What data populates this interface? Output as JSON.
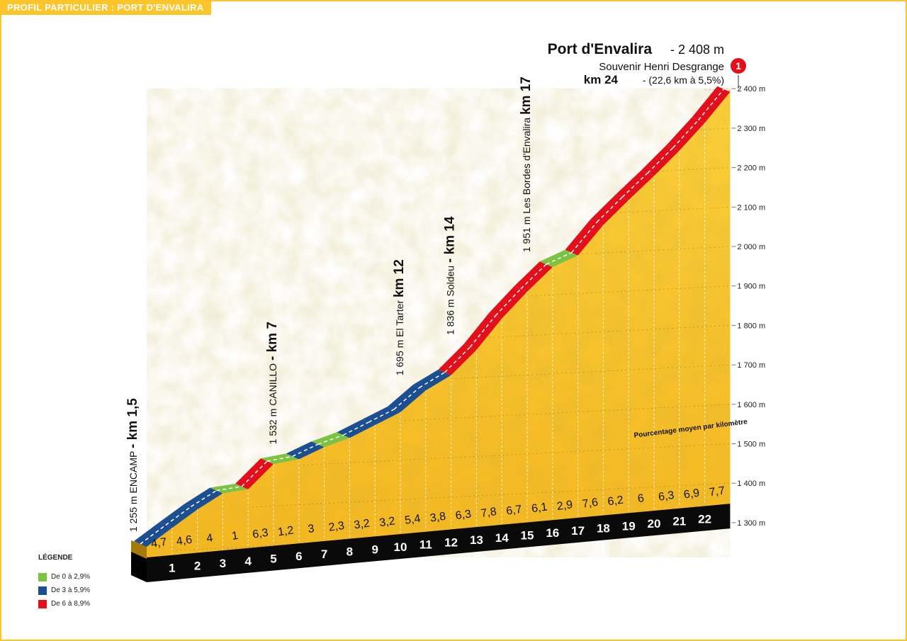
{
  "header": {
    "label": "PROFIL PARTICULIER : PORT D'ENVALIRA"
  },
  "summit": {
    "name": "Port d'Envalira",
    "altitude": " - 2 408 m",
    "dedication": "Souvenir Henri Desgrange",
    "km": "km 24",
    "detail": " - (22,6 km à 5,5%)",
    "badge": "1"
  },
  "annotations": [
    {
      "alt": "1 255 m",
      "place": "ENCAMP",
      "km": "- km 1,5",
      "at_km": 0
    },
    {
      "alt": "1 532 m",
      "place": "CANILLO",
      "km": "- km 7",
      "at_km": 5.5
    },
    {
      "alt": "1 695 m",
      "place": "El Tarter",
      "km": "km 12",
      "at_km": 10.5
    },
    {
      "alt": "1 836 m",
      "place": "Soldeu",
      "km": "- km 14",
      "at_km": 12.5
    },
    {
      "alt": "1 951 m",
      "place": "Les Bordes d'Envalira",
      "km": "km 17",
      "at_km": 15.5
    }
  ],
  "avg_note": "Pourcentage moyen par kilomètre",
  "legend": {
    "title": "LÉGENDE",
    "items": [
      {
        "label": "De 0 à 2,9%",
        "color": "#7dc242"
      },
      {
        "label": "De 3 à 5,9%",
        "color": "#1b4f91"
      },
      {
        "label": "De 6 à 8,9%",
        "color": "#e3101c"
      }
    ]
  },
  "chart_data": {
    "type": "area",
    "title": "Port d'Envalira",
    "x_unit": "km",
    "ylabel": "",
    "y_ticks": [
      "2 400 m",
      "2 300 m",
      "2 200 m",
      "2 100 m",
      "2 000 m",
      "1 900 m",
      "1 800 m",
      "1 700 m",
      "1 600 m",
      "1 500 m",
      "1 400 m",
      "1 300 m"
    ],
    "y_tick_values": [
      2400,
      2300,
      2200,
      2100,
      2000,
      1900,
      1800,
      1700,
      1600,
      1500,
      1400,
      1300
    ],
    "km_labels": [
      "1",
      "2",
      "3",
      "4",
      "5",
      "6",
      "7",
      "8",
      "9",
      "10",
      "11",
      "12",
      "13",
      "14",
      "15",
      "16",
      "17",
      "18",
      "19",
      "20",
      "21",
      "22"
    ],
    "gradients": [
      "4,7",
      "4,6",
      "4",
      "1",
      "6,3",
      "1,2",
      "3",
      "2,3",
      "3,2",
      "3,2",
      "5,4",
      "3,8",
      "6,3",
      "7,8",
      "6,7",
      "6,1",
      "2,9",
      "7,6",
      "6,2",
      "6",
      "6,3",
      "6,9",
      "7,7"
    ],
    "gradient_values": [
      4.7,
      4.6,
      4,
      1,
      6.3,
      1.2,
      3,
      2.3,
      3.2,
      3.2,
      5.4,
      3.8,
      6.3,
      7.8,
      6.7,
      6.1,
      2.9,
      7.6,
      6.2,
      6,
      6.3,
      6.9,
      7.7
    ],
    "start_altitude": 1255,
    "summit_altitude": 2408,
    "colors": {
      "green": "#7dc242",
      "blue": "#1b4f91",
      "red": "#e3101c",
      "terrain": "#fdc52c"
    }
  }
}
